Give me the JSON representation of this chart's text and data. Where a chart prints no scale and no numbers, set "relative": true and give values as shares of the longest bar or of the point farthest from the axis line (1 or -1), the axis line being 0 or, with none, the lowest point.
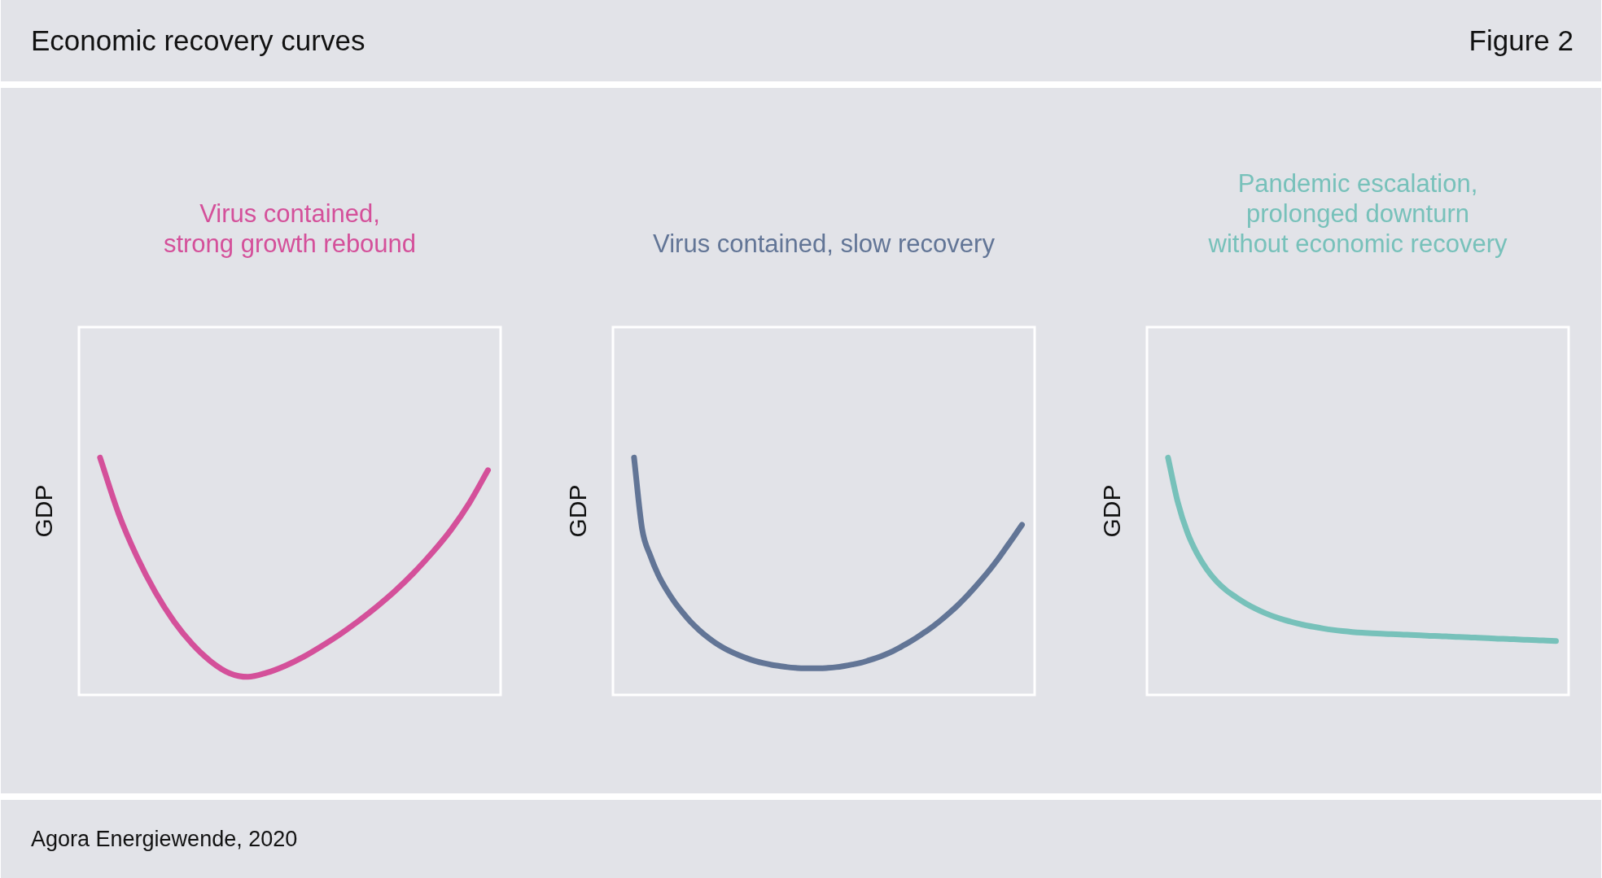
{
  "chart_data": [
    {
      "type": "other",
      "title": "Economic recovery curves",
      "annotations": [
        "Figure 2"
      ]
    },
    {
      "type": "line",
      "title": "Virus contained,\nstrong growth rebound",
      "ylabel": "GDP",
      "relative": true,
      "categories": [
        null,
        null,
        null,
        null,
        null,
        null,
        null,
        null,
        null,
        null,
        null,
        null,
        null,
        null,
        null,
        null,
        null,
        null,
        null,
        null,
        null,
        null
      ],
      "series": [
        {
          "color": "#d4509a",
          "values": [
            1,
            0.765,
            0.582,
            0.432,
            0.31,
            0.214,
            0.141,
            0.092,
            0.076,
            0.093,
            0.122,
            0.16,
            0.206,
            0.256,
            0.312,
            0.373,
            0.44,
            0.516,
            0.601,
            0.696,
            0.81,
            0.947
          ]
        }
      ]
    },
    {
      "type": "line",
      "title": "Virus contained, slow recovery",
      "ylabel": "GDP",
      "relative": true,
      "categories": [
        null,
        null,
        null,
        null,
        null,
        null,
        null,
        null,
        null,
        null,
        null,
        null,
        null,
        null,
        null,
        null,
        null,
        null,
        null,
        null,
        null,
        null,
        null,
        null,
        null,
        null,
        null,
        null,
        null,
        null,
        null,
        null,
        null,
        null,
        null,
        null,
        null,
        null,
        null,
        null,
        null,
        null,
        null,
        null,
        null,
        null,
        null,
        null,
        null
      ],
      "series": [
        {
          "color": "#627596",
          "values": [
            1,
            0.699,
            0.588,
            0.506,
            0.444,
            0.392,
            0.348,
            0.308,
            0.275,
            0.246,
            0.221,
            0.2,
            0.182,
            0.167,
            0.154,
            0.143,
            0.134,
            0.127,
            0.122,
            0.117,
            0.114,
            0.112,
            0.112,
            0.112,
            0.114,
            0.117,
            0.122,
            0.128,
            0.135,
            0.145,
            0.156,
            0.169,
            0.184,
            0.202,
            0.221,
            0.242,
            0.265,
            0.289,
            0.316,
            0.345,
            0.376,
            0.41,
            0.447,
            0.486,
            0.527,
            0.571,
            0.619,
            0.667,
            0.717
          ]
        }
      ]
    },
    {
      "type": "line",
      "title": "Pandemic escalation,\nprolonged downturn\nwithout economic recovery",
      "ylabel": "GDP",
      "relative": true,
      "categories": [
        null,
        null,
        null,
        null,
        null,
        null,
        null,
        null,
        null,
        null,
        null,
        null,
        null,
        null,
        null,
        null,
        null,
        null,
        null,
        null,
        null,
        null,
        null,
        null,
        null,
        null,
        null,
        null,
        null,
        null,
        null,
        null,
        null,
        null,
        null,
        null,
        null,
        null,
        null,
        null,
        null
      ],
      "series": [
        {
          "color": "#77c1ba",
          "values": [
            1,
            0.813,
            0.684,
            0.595,
            0.529,
            0.479,
            0.441,
            0.412,
            0.386,
            0.364,
            0.345,
            0.329,
            0.316,
            0.305,
            0.295,
            0.287,
            0.28,
            0.274,
            0.269,
            0.265,
            0.262,
            0.26,
            0.258,
            0.256,
            0.255,
            0.253,
            0.251,
            0.249,
            0.248,
            0.246,
            0.244,
            0.243,
            0.241,
            0.239,
            0.237,
            0.236,
            0.234,
            0.232,
            0.231,
            0.229,
            0.227
          ]
        }
      ]
    },
    {
      "type": "other",
      "annotations": [
        "Agora Energiewende, 2020"
      ]
    }
  ]
}
